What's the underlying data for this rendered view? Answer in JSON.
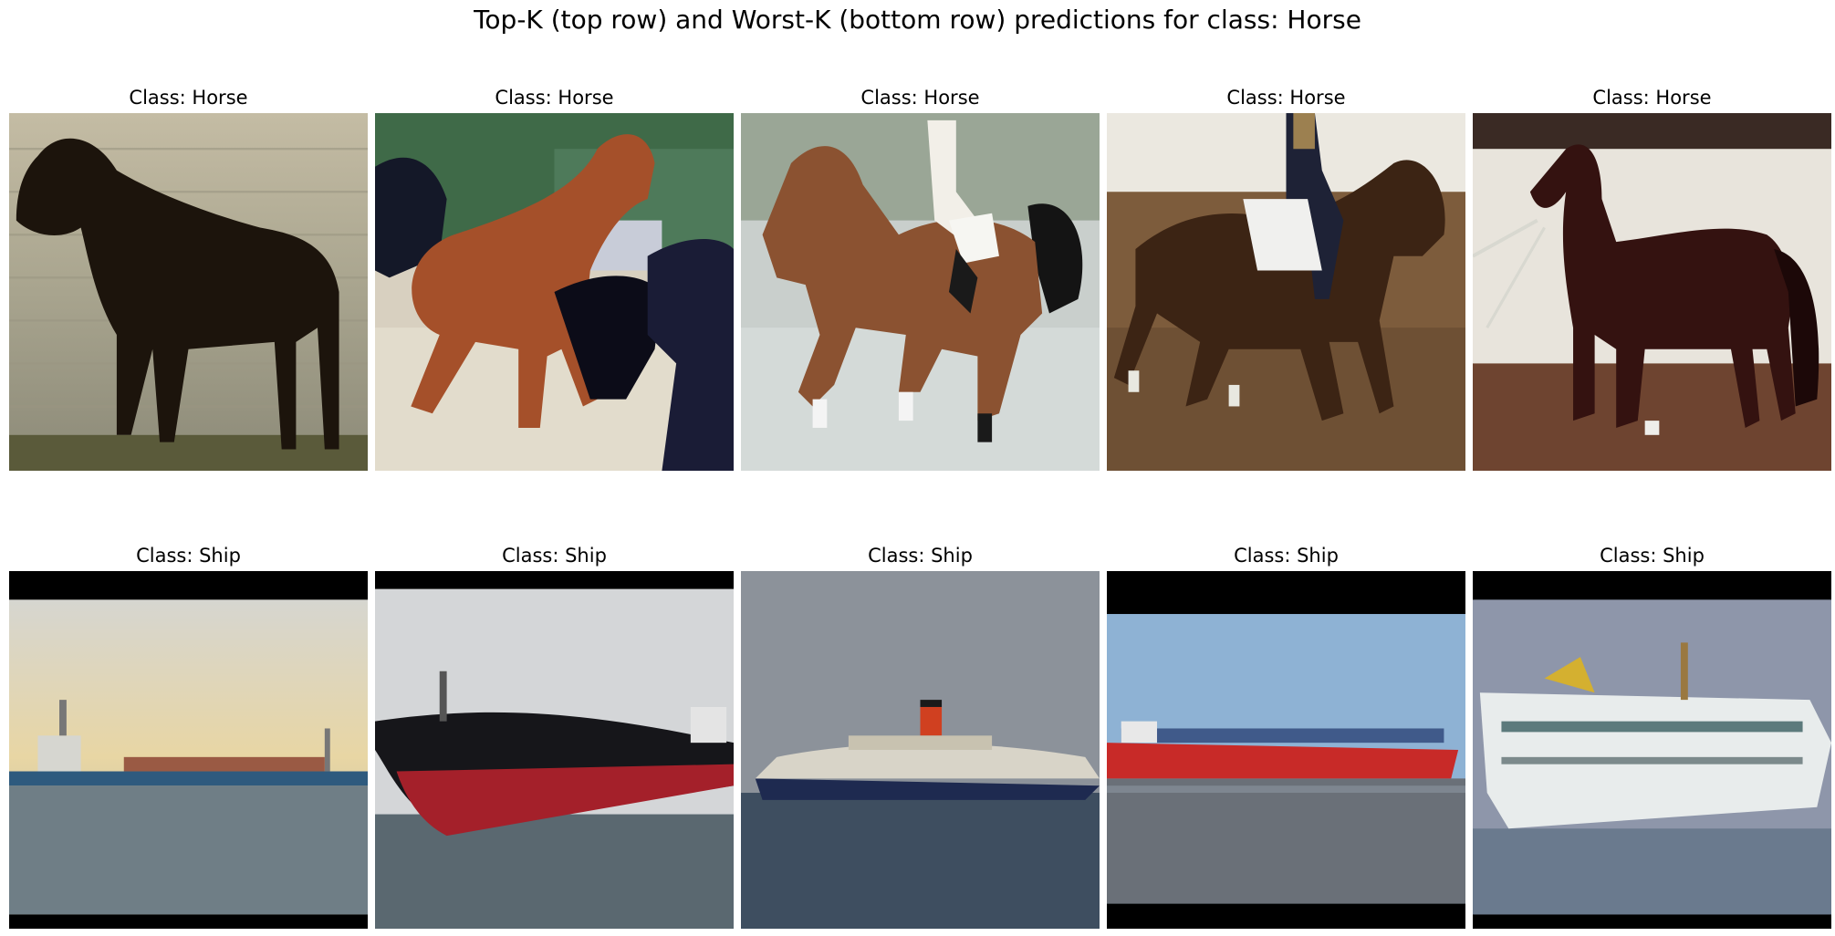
{
  "figure": {
    "title": "Top-K (top row) and Worst-K (bottom row) predictions for class: Horse"
  },
  "rows": [
    {
      "panels": [
        {
          "title": "Class: Horse",
          "image": "horse-silhouette-by-water"
        },
        {
          "title": "Class: Horse",
          "image": "chestnut-horses-running"
        },
        {
          "title": "Class: Horse",
          "image": "rider-on-galloping-horse"
        },
        {
          "title": "Class: Horse",
          "image": "dressage-horse-with-rider"
        },
        {
          "title": "Class: Horse",
          "image": "dark-bay-horse-in-arena"
        }
      ]
    },
    {
      "panels": [
        {
          "title": "Class: Ship",
          "image": "cargo-ship-at-sunset"
        },
        {
          "title": "Class: Ship",
          "image": "red-black-tanker-bow"
        },
        {
          "title": "Class: Ship",
          "image": "ocean-liner-on-sea"
        },
        {
          "title": "Class: Ship",
          "image": "red-container-ship"
        },
        {
          "title": "Class: Ship",
          "image": "white-cruise-ship"
        }
      ]
    }
  ]
}
